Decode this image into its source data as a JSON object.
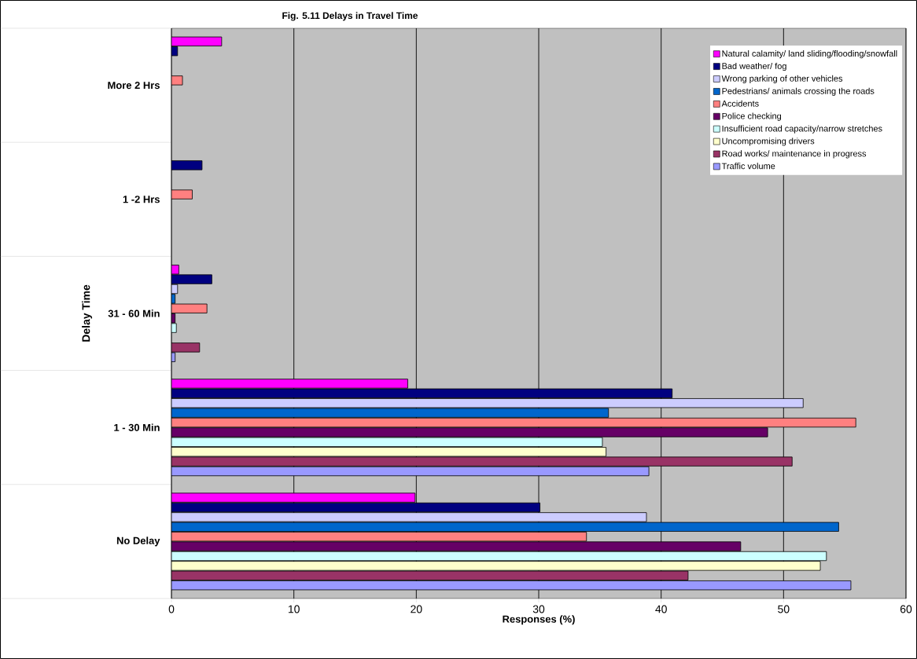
{
  "chart_data": {
    "type": "bar",
    "orientation": "horizontal",
    "title": "Fig. 5.11 Delays in Travel Time",
    "xlabel": "Responses (%)",
    "ylabel": "Delay Time",
    "categories": [
      "More 2 Hrs",
      "1 -2 Hrs",
      "31 - 60 Min",
      "1 - 30 Min",
      "No Delay"
    ],
    "series": [
      {
        "name": "Natural calamity/ land sliding/flooding/snowfall",
        "color": "#ff00ff",
        "values": [
          4.1,
          null,
          0.6,
          19.3,
          19.9
        ]
      },
      {
        "name": "Bad weather/ fog",
        "color": "#000080",
        "values": [
          0.5,
          2.5,
          3.3,
          40.9,
          30.1
        ]
      },
      {
        "name": "Wrong parking of other vehicles",
        "color": "#ccccff",
        "values": [
          null,
          null,
          0.5,
          51.6,
          38.8
        ]
      },
      {
        "name": "Pedestrians/ animals crossing the roads",
        "color": "#0066cc",
        "values": [
          null,
          null,
          0.3,
          35.7,
          54.5
        ]
      },
      {
        "name": "Accidents",
        "color": "#ff8080",
        "values": [
          0.9,
          1.7,
          2.9,
          55.9,
          33.9
        ]
      },
      {
        "name": "Police checking",
        "color": "#660066",
        "values": [
          null,
          null,
          0.3,
          48.7,
          46.5
        ]
      },
      {
        "name": "Insufficient road capacity/narrow stretches",
        "color": "#ccffff",
        "values": [
          null,
          null,
          0.4,
          35.2,
          53.5
        ]
      },
      {
        "name": "Uncompromising drivers",
        "color": "#ffffcc",
        "values": [
          null,
          null,
          null,
          35.5,
          53.0
        ]
      },
      {
        "name": "Road works/ maintenance in progress",
        "color": "#993366",
        "values": [
          null,
          null,
          2.3,
          50.7,
          42.2
        ]
      },
      {
        "name": "Traffic volume",
        "color": "#9999ff",
        "values": [
          null,
          null,
          0.3,
          39.0,
          55.5
        ]
      }
    ],
    "xlim": [
      0,
      60
    ],
    "xticks": [
      0,
      10,
      20,
      30,
      40,
      50,
      60
    ],
    "grid": "x",
    "legend": "top right"
  }
}
